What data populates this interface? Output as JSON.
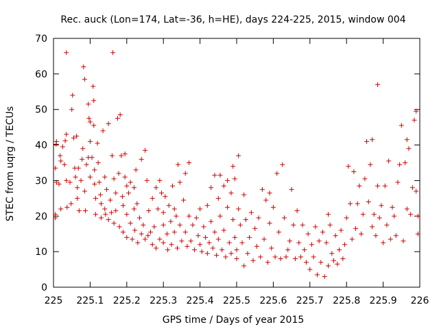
{
  "chart_data": {
    "type": "scatter",
    "title": "Rec. auck (Lon=174, Lat=-36, h=HE), days 224-225, 2015, window 004",
    "xlabel": "GPS time / Days of year 2015",
    "ylabel": "STEC from uqrg / TECUs",
    "xlim": [
      225,
      226
    ],
    "ylim": [
      0,
      70
    ],
    "xticks": [
      225,
      225.1,
      225.2,
      225.3,
      225.4,
      225.5,
      225.6,
      225.7,
      225.8,
      225.9,
      226
    ],
    "xtick_labels": [
      "225",
      "225.1",
      "225.2",
      "225.3",
      "225.4",
      "225.5",
      "225.6",
      "225.7",
      "225.8",
      "225.9",
      "226"
    ],
    "yticks": [
      0,
      10,
      20,
      30,
      40,
      50,
      60,
      70
    ],
    "ytick_labels": [
      "0",
      "10",
      "20",
      "30",
      "40",
      "50",
      "60",
      "70"
    ],
    "marker": "+",
    "color": "#cc0000",
    "series": [
      {
        "name": "STEC",
        "points": [
          [
            225.005,
            19.5
          ],
          [
            225.005,
            20.5
          ],
          [
            225.005,
            33.5
          ],
          [
            225.007,
            40.2
          ],
          [
            225.008,
            41.0
          ],
          [
            225.008,
            29.5
          ],
          [
            225.015,
            29.0
          ],
          [
            225.018,
            37.0
          ],
          [
            225.02,
            35.5
          ],
          [
            225.02,
            22.0
          ],
          [
            225.025,
            39.5
          ],
          [
            225.03,
            34.5
          ],
          [
            225.032,
            41.2
          ],
          [
            225.035,
            66.0
          ],
          [
            225.035,
            43.0
          ],
          [
            225.035,
            30.0
          ],
          [
            225.037,
            22.5
          ],
          [
            225.045,
            29.5
          ],
          [
            225.048,
            23.5
          ],
          [
            225.05,
            50.0
          ],
          [
            225.052,
            54.0
          ],
          [
            225.055,
            42.0
          ],
          [
            225.058,
            33.5
          ],
          [
            225.06,
            31.0
          ],
          [
            225.063,
            42.5
          ],
          [
            225.065,
            28.0
          ],
          [
            225.065,
            25.0
          ],
          [
            225.068,
            33.5
          ],
          [
            225.07,
            21.5
          ],
          [
            225.075,
            30.0
          ],
          [
            225.078,
            36.0
          ],
          [
            225.08,
            39.0
          ],
          [
            225.082,
            62.0
          ],
          [
            225.085,
            58.5
          ],
          [
            225.085,
            27.0
          ],
          [
            225.087,
            21.5
          ],
          [
            225.09,
            34.5
          ],
          [
            225.095,
            51.5
          ],
          [
            225.095,
            36.5
          ],
          [
            225.097,
            47.5
          ],
          [
            225.1,
            46.5
          ],
          [
            225.1,
            41.0
          ],
          [
            225.1,
            31.0
          ],
          [
            225.105,
            36.5
          ],
          [
            225.108,
            56.5
          ],
          [
            225.11,
            52.5
          ],
          [
            225.11,
            45.5
          ],
          [
            225.112,
            33.0
          ],
          [
            225.112,
            29.0
          ],
          [
            225.115,
            25.0
          ],
          [
            225.115,
            20.5
          ],
          [
            225.12,
            40.5
          ],
          [
            225.122,
            35.0
          ],
          [
            225.125,
            29.5
          ],
          [
            225.128,
            26.0
          ],
          [
            225.13,
            23.5
          ],
          [
            225.13,
            19.5
          ],
          [
            225.135,
            44.0
          ],
          [
            225.14,
            31.0
          ],
          [
            225.14,
            22.0
          ],
          [
            225.142,
            20.5
          ],
          [
            225.145,
            27.5
          ],
          [
            225.15,
            46.0
          ],
          [
            225.15,
            19.0
          ],
          [
            225.155,
            24.5
          ],
          [
            225.158,
            21.0
          ],
          [
            225.16,
            37.0
          ],
          [
            225.162,
            66.0
          ],
          [
            225.165,
            30.5
          ],
          [
            225.165,
            18.0
          ],
          [
            225.17,
            26.5
          ],
          [
            225.17,
            21.5
          ],
          [
            225.175,
            47.5
          ],
          [
            225.178,
            32.0
          ],
          [
            225.18,
            17.0
          ],
          [
            225.182,
            48.5
          ],
          [
            225.185,
            37.0
          ],
          [
            225.188,
            25.5
          ],
          [
            225.19,
            23.0
          ],
          [
            225.19,
            15.5
          ],
          [
            225.195,
            37.5
          ],
          [
            225.195,
            31.0
          ],
          [
            225.2,
            28.5
          ],
          [
            225.2,
            20.5
          ],
          [
            225.2,
            14.0
          ],
          [
            225.205,
            26.5
          ],
          [
            225.21,
            29.5
          ],
          [
            225.21,
            18.0
          ],
          [
            225.215,
            13.5
          ],
          [
            225.22,
            28.0
          ],
          [
            225.22,
            22.0
          ],
          [
            225.222,
            16.0
          ],
          [
            225.225,
            33.0
          ],
          [
            225.228,
            23.5
          ],
          [
            225.23,
            12.5
          ],
          [
            225.235,
            19.5
          ],
          [
            225.24,
            36.0
          ],
          [
            225.24,
            15.0
          ],
          [
            225.245,
            17.5
          ],
          [
            225.25,
            38.5
          ],
          [
            225.25,
            13.5
          ],
          [
            225.255,
            30.0
          ],
          [
            225.258,
            14.5
          ],
          [
            225.26,
            21.5
          ],
          [
            225.265,
            15.5
          ],
          [
            225.27,
            25.0
          ],
          [
            225.27,
            12.0
          ],
          [
            225.275,
            17.0
          ],
          [
            225.28,
            28.0
          ],
          [
            225.28,
            11.0
          ],
          [
            225.285,
            22.0
          ],
          [
            225.29,
            30.0
          ],
          [
            225.29,
            13.5
          ],
          [
            225.295,
            26.5
          ],
          [
            225.3,
            21.0
          ],
          [
            225.3,
            17.5
          ],
          [
            225.3,
            12.5
          ],
          [
            225.305,
            25.5
          ],
          [
            225.31,
            15.0
          ],
          [
            225.312,
            10.5
          ],
          [
            225.315,
            23.0
          ],
          [
            225.32,
            18.5
          ],
          [
            225.322,
            12.0
          ],
          [
            225.325,
            28.5
          ],
          [
            225.33,
            22.0
          ],
          [
            225.33,
            15.5
          ],
          [
            225.335,
            20.0
          ],
          [
            225.338,
            11.0
          ],
          [
            225.34,
            34.5
          ],
          [
            225.345,
            29.5
          ],
          [
            225.345,
            17.5
          ],
          [
            225.35,
            13.0
          ],
          [
            225.355,
            24.5
          ],
          [
            225.36,
            32.0
          ],
          [
            225.36,
            15.5
          ],
          [
            225.365,
            11.5
          ],
          [
            225.37,
            35.0
          ],
          [
            225.37,
            20.0
          ],
          [
            225.375,
            13.0
          ],
          [
            225.38,
            17.5
          ],
          [
            225.385,
            10.5
          ],
          [
            225.39,
            19.5
          ],
          [
            225.395,
            14.5
          ],
          [
            225.4,
            12.0
          ],
          [
            225.4,
            22.0
          ],
          [
            225.405,
            10.0
          ],
          [
            225.41,
            17.0
          ],
          [
            225.415,
            14.0
          ],
          [
            225.42,
            23.0
          ],
          [
            225.42,
            9.5
          ],
          [
            225.425,
            12.5
          ],
          [
            225.43,
            28.0
          ],
          [
            225.43,
            18.5
          ],
          [
            225.435,
            11.0
          ],
          [
            225.44,
            31.5
          ],
          [
            225.44,
            15.5
          ],
          [
            225.445,
            9.0
          ],
          [
            225.45,
            25.0
          ],
          [
            225.45,
            13.5
          ],
          [
            225.455,
            31.5
          ],
          [
            225.455,
            20.0
          ],
          [
            225.46,
            10.5
          ],
          [
            225.465,
            28.5
          ],
          [
            225.465,
            16.0
          ],
          [
            225.47,
            8.5
          ],
          [
            225.475,
            30.0
          ],
          [
            225.475,
            22.5
          ],
          [
            225.48,
            12.5
          ],
          [
            225.485,
            26.5
          ],
          [
            225.485,
            9.5
          ],
          [
            225.49,
            34.0
          ],
          [
            225.49,
            19.0
          ],
          [
            225.495,
            30.5
          ],
          [
            225.495,
            14.0
          ],
          [
            225.5,
            10.5
          ],
          [
            225.5,
            8.0
          ],
          [
            225.505,
            37.0
          ],
          [
            225.505,
            22.0
          ],
          [
            225.51,
            17.5
          ],
          [
            225.515,
            12.5
          ],
          [
            225.52,
            26.0
          ],
          [
            225.52,
            6.0
          ],
          [
            225.525,
            19.0
          ],
          [
            225.53,
            9.5
          ],
          [
            225.535,
            14.0
          ],
          [
            225.54,
            21.0
          ],
          [
            225.545,
            7.5
          ],
          [
            225.55,
            16.5
          ],
          [
            225.555,
            11.5
          ],
          [
            225.56,
            19.5
          ],
          [
            225.565,
            8.5
          ],
          [
            225.57,
            27.5
          ],
          [
            225.575,
            13.5
          ],
          [
            225.58,
            24.5
          ],
          [
            225.585,
            7.0
          ],
          [
            225.59,
            26.5
          ],
          [
            225.59,
            18.0
          ],
          [
            225.595,
            11.0
          ],
          [
            225.6,
            22.5
          ],
          [
            225.605,
            8.5
          ],
          [
            225.61,
            32.0
          ],
          [
            225.615,
            15.5
          ],
          [
            225.62,
            8.0
          ],
          [
            225.625,
            34.5
          ],
          [
            225.63,
            19.5
          ],
          [
            225.635,
            8.5
          ],
          [
            225.64,
            10.5
          ],
          [
            225.645,
            13.0
          ],
          [
            225.65,
            27.5
          ],
          [
            225.655,
            17.5
          ],
          [
            225.66,
            8.0
          ],
          [
            225.665,
            21.5
          ],
          [
            225.67,
            12.5
          ],
          [
            225.675,
            8.5
          ],
          [
            225.68,
            17.5
          ],
          [
            225.685,
            10.5
          ],
          [
            225.69,
            7.0
          ],
          [
            225.695,
            15.0
          ],
          [
            225.7,
            5.0
          ],
          [
            225.705,
            12.0
          ],
          [
            225.71,
            8.5
          ],
          [
            225.715,
            17.0
          ],
          [
            225.72,
            3.5
          ],
          [
            225.725,
            13.0
          ],
          [
            225.73,
            7.0
          ],
          [
            225.735,
            15.5
          ],
          [
            225.74,
            3.0
          ],
          [
            225.745,
            12.5
          ],
          [
            225.75,
            20.5
          ],
          [
            225.75,
            6.0
          ],
          [
            225.755,
            17.5
          ],
          [
            225.76,
            9.5
          ],
          [
            225.765,
            7.5
          ],
          [
            225.77,
            14.5
          ],
          [
            225.775,
            6.5
          ],
          [
            225.78,
            10.5
          ],
          [
            225.785,
            16.0
          ],
          [
            225.79,
            8.0
          ],
          [
            225.795,
            12.0
          ],
          [
            225.8,
            19.5
          ],
          [
            225.805,
            34.0
          ],
          [
            225.81,
            23.5
          ],
          [
            225.815,
            13.5
          ],
          [
            225.82,
            32.5
          ],
          [
            225.825,
            16.5
          ],
          [
            225.83,
            23.5
          ],
          [
            225.835,
            28.5
          ],
          [
            225.84,
            15.0
          ],
          [
            225.845,
            20.5
          ],
          [
            225.85,
            30.5
          ],
          [
            225.855,
            41.0
          ],
          [
            225.86,
            24.0
          ],
          [
            225.865,
            34.5
          ],
          [
            225.87,
            41.5
          ],
          [
            225.87,
            17.0
          ],
          [
            225.875,
            20.5
          ],
          [
            225.88,
            14.5
          ],
          [
            225.885,
            57.0
          ],
          [
            225.885,
            28.5
          ],
          [
            225.89,
            19.5
          ],
          [
            225.895,
            23.0
          ],
          [
            225.9,
            12.5
          ],
          [
            225.905,
            28.5
          ],
          [
            225.91,
            17.5
          ],
          [
            225.915,
            35.5
          ],
          [
            225.92,
            13.5
          ],
          [
            225.925,
            22.5
          ],
          [
            225.93,
            20.0
          ],
          [
            225.935,
            14.5
          ],
          [
            225.94,
            29.5
          ],
          [
            225.945,
            34.5
          ],
          [
            225.95,
            45.5
          ],
          [
            225.955,
            13.0
          ],
          [
            225.96,
            35.0
          ],
          [
            225.965,
            41.5
          ],
          [
            225.965,
            22.0
          ],
          [
            225.97,
            39.0
          ],
          [
            225.975,
            20.5
          ],
          [
            225.98,
            28.0
          ],
          [
            225.985,
            47.0
          ],
          [
            225.99,
            49.5
          ],
          [
            225.99,
            27.0
          ],
          [
            225.995,
            20.0
          ],
          [
            225.995,
            15.0
          ]
        ]
      }
    ]
  }
}
